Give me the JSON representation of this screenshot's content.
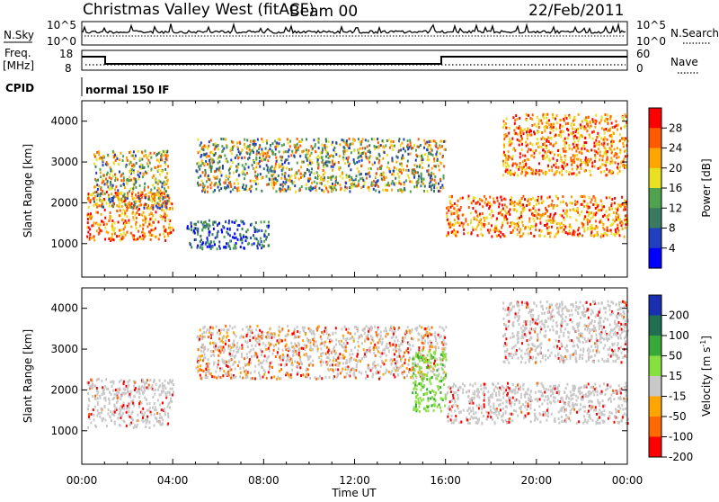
{
  "header": {
    "station": "Christmas Valley West (fitACF)",
    "beam": "Beam 00",
    "date": "22/Feb/2011"
  },
  "params": {
    "nsky_label": "N.Sky",
    "nsky_ticks": [
      "10^5",
      "10^0"
    ],
    "nsearch_label": "N.Search",
    "nsearch_ticks": [
      "10^5",
      "10^0"
    ],
    "freq_label_1": "Freq.",
    "freq_label_2": "[MHz]",
    "freq_ticks": [
      "18",
      "8"
    ],
    "nave_label": "Nave",
    "nave_ticks": [
      "60",
      "0"
    ],
    "cpid_label": "CPID",
    "cpid_value": "normal 150 IF"
  },
  "chart_data": [
    {
      "type": "heatmap",
      "name": "power",
      "ylabel": "Slant Range [km]",
      "xlabel": "",
      "yticks": [
        "1000",
        "2000",
        "3000",
        "4000"
      ],
      "ylim": [
        180,
        4500
      ],
      "xlim": [
        0,
        24
      ],
      "colorbar_label": "Power [dB]",
      "colorbar_ticks": [
        "4",
        "8",
        "12",
        "16",
        "20",
        "24",
        "28"
      ],
      "colorbar_colors": [
        "#0000ff",
        "#2040c0",
        "#3a7a60",
        "#4fa34f",
        "#e8e020",
        "#ffa500",
        "#ff5a00",
        "#ff0000"
      ],
      "echo_regions": [
        {
          "t": [
            0.2,
            4.0
          ],
          "r": [
            1100,
            2300
          ],
          "level": "high"
        },
        {
          "t": [
            0.5,
            3.8
          ],
          "r": [
            1900,
            3300
          ],
          "level": "medium"
        },
        {
          "t": [
            4.6,
            8.2
          ],
          "r": [
            900,
            1600
          ],
          "level": "low"
        },
        {
          "t": [
            5.0,
            16.0
          ],
          "r": [
            2300,
            3600
          ],
          "level": "medium"
        },
        {
          "t": [
            16.0,
            24.0
          ],
          "r": [
            1200,
            2200
          ],
          "level": "high"
        },
        {
          "t": [
            18.5,
            24.0
          ],
          "r": [
            2700,
            4200
          ],
          "level": "high"
        }
      ]
    },
    {
      "type": "heatmap",
      "name": "velocity",
      "ylabel": "Slant Range [km]",
      "xlabel": "Time UT",
      "yticks": [
        "1000",
        "2000",
        "3000",
        "4000"
      ],
      "xticks": [
        "00:00",
        "04:00",
        "08:00",
        "12:00",
        "16:00",
        "20:00",
        "00:00"
      ],
      "ylim": [
        180,
        4500
      ],
      "xlim": [
        0,
        24
      ],
      "colorbar_label": "Velocity [m s",
      "colorbar_unit_sup": "-1",
      "colorbar_ticks": [
        "200",
        "100",
        "50",
        "15",
        "-15",
        "-50",
        "-100",
        "-200"
      ],
      "colorbar_colors": [
        "#1a2fb0",
        "#1f6f50",
        "#38a838",
        "#88e040",
        "#c8c8c8",
        "#ffa500",
        "#ff6a00",
        "#ff0000"
      ],
      "echo_regions": [
        {
          "t": [
            0.2,
            4.0
          ],
          "r": [
            1100,
            2300
          ],
          "level": "ground"
        },
        {
          "t": [
            5.0,
            16.0
          ],
          "r": [
            2300,
            3600
          ],
          "level": "mixed"
        },
        {
          "t": [
            14.5,
            16.0
          ],
          "r": [
            1500,
            3000
          ],
          "level": "positive"
        },
        {
          "t": [
            16.0,
            24.0
          ],
          "r": [
            1200,
            2200
          ],
          "level": "ground"
        },
        {
          "t": [
            18.5,
            24.0
          ],
          "r": [
            2700,
            4200
          ],
          "level": "ground"
        }
      ]
    }
  ]
}
